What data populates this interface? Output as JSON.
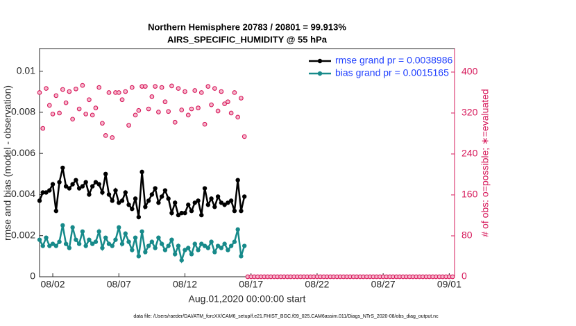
{
  "chart_data": {
    "type": "line",
    "title": "Northern Hemisphere 20783 / 20801 = 99.913%",
    "subtitle": "AIRS_SPECIFIC_HUMIDITY @ 55 hPa",
    "xlabel": "Aug.01,2020 00:00:00 start",
    "ylabel": "rmse and bias (model - observation)",
    "y2label": "# of obs: o=possible; ∗=evaluated",
    "footnote": "data file: /Users/raeder/DAI/ATM_forcXX/CAM6_setup/f.e21.FHIST_BGC.f09_025.CAM6assim.011/Diags_NTrS_2020-08/obs_diag_output.nc",
    "x": [
      0,
      0.25,
      0.5,
      0.75,
      1,
      1.25,
      1.5,
      1.75,
      2,
      2.25,
      2.5,
      2.75,
      3,
      3.25,
      3.5,
      3.75,
      4,
      4.25,
      4.5,
      4.75,
      5,
      5.25,
      5.5,
      5.75,
      6,
      6.25,
      6.5,
      6.75,
      7,
      7.25,
      7.5,
      7.75,
      8,
      8.25,
      8.5,
      8.75,
      9,
      9.25,
      9.5,
      9.75,
      10,
      10.25,
      10.5,
      10.75,
      11,
      11.25,
      11.5,
      11.75,
      12,
      12.25,
      12.5,
      12.75,
      13,
      13.25,
      13.5,
      13.75,
      14,
      14.25,
      14.5,
      14.75,
      15,
      15.25,
      15.5
    ],
    "xlim": [
      0,
      31.4
    ],
    "xticks": [
      {
        "value": 1,
        "label": "08/02"
      },
      {
        "value": 6,
        "label": "08/07"
      },
      {
        "value": 11,
        "label": "08/12"
      },
      {
        "value": 16,
        "label": "08/17"
      },
      {
        "value": 21,
        "label": "08/22"
      },
      {
        "value": 26,
        "label": "08/27"
      },
      {
        "value": 31,
        "label": "09/01"
      }
    ],
    "ylim": [
      0,
      0.0111
    ],
    "yticks": [
      0,
      0.002,
      0.004,
      0.006,
      0.008,
      0.01
    ],
    "y2lim": [
      0,
      446
    ],
    "y2ticks": [
      0,
      80,
      160,
      240,
      320,
      400
    ],
    "y2color": "#d6185a",
    "legend": "upper right",
    "grid": false,
    "series": [
      {
        "name": "rmse grand pr = 0.0038986",
        "color": "#000000",
        "style": "line",
        "values": [
          0.0037,
          0.0041,
          0.0041,
          0.0042,
          0.0045,
          0.0032,
          0.0046,
          0.0053,
          0.0044,
          0.0043,
          0.0045,
          0.0047,
          0.0043,
          0.0044,
          0.0046,
          0.004,
          0.0044,
          0.0046,
          0.0045,
          0.0041,
          0.005,
          0.004,
          0.0037,
          0.0042,
          0.0036,
          0.0037,
          0.0041,
          0.0035,
          0.0033,
          0.0038,
          0.0029,
          0.0051,
          0.0034,
          0.0037,
          0.004,
          0.0043,
          0.0036,
          0.0039,
          0.0042,
          0.0038,
          0.0031,
          0.0036,
          0.003,
          0.0031,
          0.0031,
          0.0035,
          0.0032,
          0.0036,
          0.0037,
          0.003,
          0.0043,
          0.0035,
          0.0038,
          0.0034,
          0.0039,
          0.0036,
          0.0035,
          0.0036,
          0.0037,
          0.0032,
          0.0047,
          0.0032,
          0.0039
        ]
      },
      {
        "name": "bias grand pr = 0.0015165",
        "color": "#178a8a",
        "style": "line",
        "values": [
          0.0018,
          0.0015,
          0.0019,
          0.0015,
          0.0016,
          0.0015,
          0.0017,
          0.0025,
          0.0016,
          0.0014,
          0.0024,
          0.0018,
          0.0016,
          0.0022,
          0.0015,
          0.0018,
          0.0016,
          0.0017,
          0.0022,
          0.0014,
          0.0019,
          0.0016,
          0.0015,
          0.0018,
          0.0024,
          0.0016,
          0.0021,
          0.0017,
          0.0013,
          0.0019,
          0.001,
          0.0022,
          0.0012,
          0.0015,
          0.0017,
          0.0014,
          0.0019,
          0.0016,
          0.0013,
          0.0015,
          0.0018,
          0.0011,
          0.0015,
          0.0008,
          0.0013,
          0.0014,
          0.0011,
          0.0016,
          0.0013,
          0.0016,
          0.0015,
          0.0014,
          0.0017,
          0.0012,
          0.0015,
          0.0014,
          0.0016,
          0.0013,
          0.0015,
          0.0017,
          0.0023,
          0.001,
          0.0015
        ]
      },
      {
        "color": "#d6185a",
        "style": "markers",
        "axis": "y2",
        "values": [
          360,
          290,
          368,
          335,
          318,
          354,
          320,
          366,
          340,
          362,
          308,
          367,
          328,
          374,
          318,
          346,
          316,
          330,
          370,
          300,
          276,
          360,
          272,
          360,
          360,
          346,
          362,
          296,
          370,
          316,
          325,
          372,
          372,
          328,
          352,
          372,
          322,
          370,
          342,
          323,
          373,
          302,
          368,
          326,
          362,
          316,
          328,
          364,
          330,
          360,
          298,
          372,
          336,
          368,
          324,
          362,
          338,
          342,
          320,
          360,
          312,
          349,
          274
        ]
      },
      {
        "color": "#d6185a",
        "style": "markers",
        "axis": "y2",
        "x": [
          15.75,
          16,
          16.25,
          16.5,
          16.75,
          17,
          17.25,
          17.5,
          17.75,
          18,
          18.25,
          18.5,
          18.75,
          19,
          19.25,
          19.5,
          19.75,
          20,
          20.25,
          20.5,
          20.75,
          21,
          21.25,
          21.5,
          21.75,
          22,
          22.25,
          22.5,
          22.75,
          23,
          23.25,
          23.5,
          23.75,
          24,
          24.25,
          24.5,
          24.75,
          25,
          25.25,
          25.5,
          25.75,
          26,
          26.25,
          26.5,
          26.75,
          27,
          27.25,
          27.5,
          27.75,
          28,
          28.25,
          28.5,
          28.75,
          29,
          29.25,
          29.5,
          29.75,
          30,
          30.25,
          30.5,
          30.75,
          31,
          31.25
        ],
        "values": [
          0,
          0,
          0,
          0,
          0,
          0,
          0,
          0,
          0,
          0,
          0,
          0,
          0,
          0,
          0,
          0,
          0,
          0,
          0,
          0,
          0,
          0,
          0,
          0,
          0,
          0,
          0,
          0,
          0,
          0,
          0,
          0,
          0,
          0,
          0,
          0,
          0,
          0,
          0,
          0,
          0,
          0,
          0,
          0,
          0,
          0,
          0,
          0,
          0,
          0,
          0,
          0,
          0,
          0,
          0,
          0,
          0,
          0,
          0,
          0,
          0,
          0,
          0
        ]
      }
    ]
  }
}
